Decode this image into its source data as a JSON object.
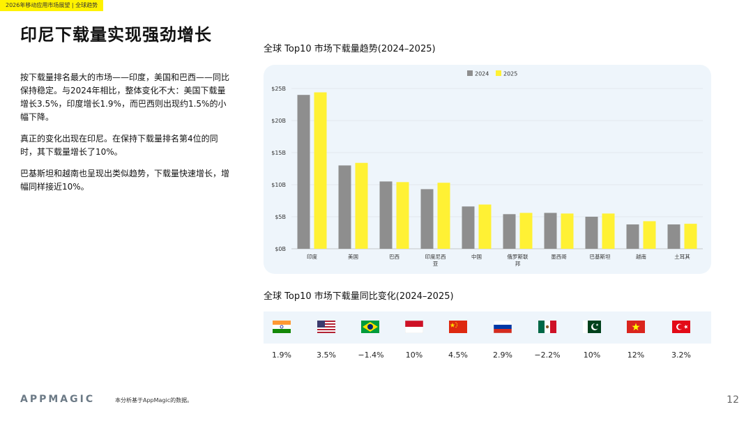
{
  "header": {
    "tag": "2026年移动应用市场展望 | 全球趋势"
  },
  "title": "印尼下载量实现强劲增长",
  "paragraphs": [
    "按下载量排名最大的市场——印度，美国和巴西——同比保持稳定。与2024年相比，整体变化不大：美国下载量增长3.5%，印度增长1.9%，而巴西则出现约1.5%的小幅下降。",
    "真正的变化出现在印尼。在保持下载量排名第4位的同时，其下载量增长了10%。",
    "巴基斯坦和越南也呈现出类似趋势，下载量快速增长，增幅同样接近10%。"
  ],
  "colors": {
    "series_2024": "#8e8e8e",
    "series_2025": "#fff134",
    "panel": "#eef5fb",
    "accent": "#fff200"
  },
  "chart_data": [
    {
      "type": "bar",
      "title": "全球 Top10 市场下载量趋势(2024–2025)",
      "categories": [
        "印度",
        "美国",
        "巴西",
        "印度尼西亚",
        "中国",
        "俄罗斯联邦",
        "墨西哥",
        "巴基斯坦",
        "越南",
        "土耳其"
      ],
      "series": [
        {
          "name": "2024",
          "values": [
            24.0,
            13.0,
            10.5,
            9.3,
            6.6,
            5.4,
            5.6,
            5.0,
            3.8,
            3.8
          ]
        },
        {
          "name": "2025",
          "values": [
            24.4,
            13.4,
            10.4,
            10.3,
            6.9,
            5.6,
            5.5,
            5.5,
            4.3,
            3.9
          ]
        }
      ],
      "ylim": [
        0,
        25
      ],
      "yticks": [
        "$0B",
        "$5B",
        "$10B",
        "$15B",
        "$20B",
        "$25B"
      ],
      "xlabel": "",
      "ylabel": "",
      "legend": "top-center",
      "grid": true
    },
    {
      "type": "table",
      "title": "全球 Top10 市场下载量同比变化(2024–2025)",
      "flags": [
        "india-flag-icon",
        "usa-flag-icon",
        "brazil-flag-icon",
        "indonesia-flag-icon",
        "china-flag-icon",
        "russia-flag-icon",
        "mexico-flag-icon",
        "pakistan-flag-icon",
        "vietnam-flag-icon",
        "turkey-flag-icon"
      ],
      "values": [
        "1.9%",
        "3.5%",
        "−1.4%",
        "10%",
        "4.5%",
        "2.9%",
        "−2.2%",
        "10%",
        "12%",
        "3.2%"
      ]
    }
  ],
  "footer": {
    "logo": "APPMAGIC",
    "note": "本分析基于AppMagic的数据。",
    "page": "12"
  }
}
